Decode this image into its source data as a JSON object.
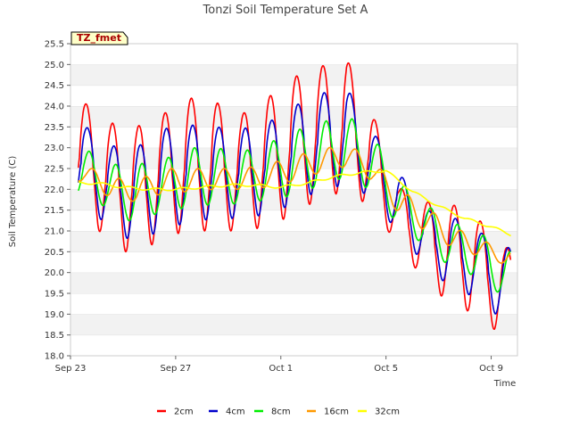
{
  "chart_data": {
    "type": "line",
    "title": "Tonzi Soil Temperature Set A",
    "xlabel": "Time",
    "ylabel": "Soil Temperature (C)",
    "tag": "TZ_fmet",
    "ylim": [
      18.0,
      25.5
    ],
    "yticks": [
      "18.0",
      "18.5",
      "19.0",
      "19.5",
      "20.0",
      "20.5",
      "21.0",
      "21.5",
      "22.0",
      "22.5",
      "23.0",
      "23.5",
      "24.0",
      "24.5",
      "25.0",
      "25.5"
    ],
    "xlim_days": [
      0,
      17.0
    ],
    "xticks": [
      {
        "label": "Sep 23",
        "day": 0
      },
      {
        "label": "Sep 27",
        "day": 4
      },
      {
        "label": "Oct 1",
        "day": 8
      },
      {
        "label": "Oct 5",
        "day": 12
      },
      {
        "label": "Oct 9",
        "day": 16
      }
    ],
    "grid": "horizontal bands",
    "legend_position": "bottom",
    "series": [
      {
        "name": "2cm",
        "color": "#ff0000",
        "daily_max": [
          24.1,
          23.6,
          23.5,
          23.8,
          24.2,
          24.1,
          23.8,
          24.2,
          24.7,
          24.95,
          25.15,
          23.8,
          22.05,
          21.7,
          21.65,
          21.3,
          20.6
        ],
        "daily_min": [
          21.5,
          20.65,
          20.4,
          20.85,
          21.0,
          21.0,
          21.0,
          21.1,
          21.4,
          21.8,
          21.95,
          21.55,
          20.6,
          19.8,
          19.2,
          19.0,
          18.4
        ]
      },
      {
        "name": "4cm",
        "color": "#0000cc",
        "daily_max": [
          23.55,
          23.05,
          23.0,
          23.45,
          23.55,
          23.5,
          23.45,
          23.6,
          24.0,
          24.3,
          24.45,
          23.4,
          22.4,
          21.5,
          21.35,
          21.0,
          20.6
        ],
        "daily_min": [
          21.7,
          21.05,
          20.7,
          21.05,
          21.2,
          21.3,
          21.3,
          21.4,
          21.65,
          22.0,
          22.1,
          21.8,
          20.9,
          20.2,
          19.6,
          19.4,
          18.8
        ]
      },
      {
        "name": "8cm",
        "color": "#00ee00",
        "daily_max": [
          23.0,
          22.6,
          22.6,
          22.7,
          23.0,
          23.0,
          22.9,
          23.1,
          23.4,
          23.6,
          23.8,
          23.3,
          22.2,
          21.65,
          21.2,
          21.0,
          20.5
        ],
        "daily_min": [
          21.9,
          21.5,
          21.15,
          21.5,
          21.55,
          21.65,
          21.65,
          21.75,
          21.85,
          22.1,
          22.3,
          21.95,
          21.1,
          20.65,
          20.1,
          19.9,
          19.4
        ]
      },
      {
        "name": "16cm",
        "color": "#ff9900",
        "daily_max": [
          22.6,
          22.3,
          22.2,
          22.5,
          22.5,
          22.5,
          22.5,
          22.6,
          22.8,
          22.95,
          23.1,
          22.7,
          22.0,
          21.6,
          21.1,
          20.85,
          20.5
        ],
        "daily_min": [
          22.2,
          21.8,
          21.7,
          21.9,
          21.95,
          22.0,
          22.0,
          22.05,
          22.2,
          22.4,
          22.55,
          22.2,
          21.4,
          21.0,
          20.6,
          20.4,
          20.2
        ]
      },
      {
        "name": "32cm",
        "color": "#ffff00",
        "points_x": [
          0,
          1,
          2,
          3,
          4,
          5,
          6,
          7,
          8,
          9,
          10,
          11,
          12,
          13,
          14,
          15,
          16,
          17
        ],
        "points_y": [
          22.15,
          22.15,
          22.05,
          22.0,
          22.0,
          22.05,
          22.1,
          22.1,
          22.05,
          22.15,
          22.3,
          22.4,
          22.45,
          21.95,
          21.6,
          21.3,
          21.1,
          20.85
        ]
      }
    ]
  }
}
